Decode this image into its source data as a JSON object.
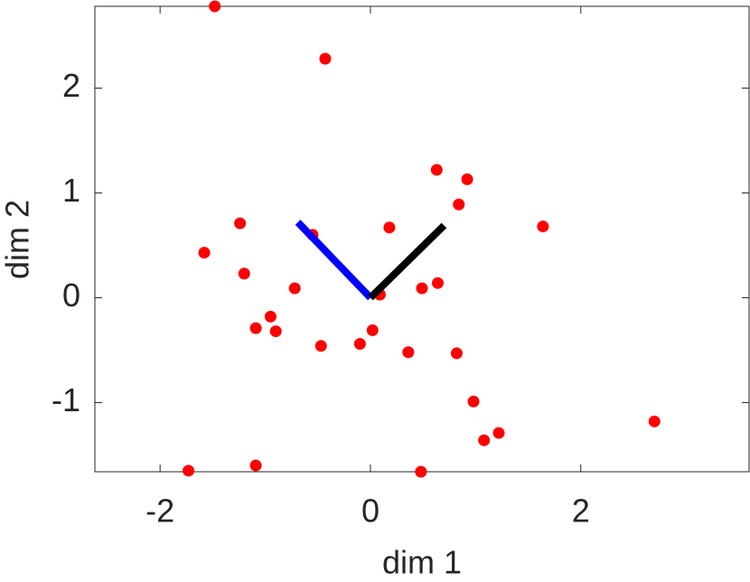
{
  "chart_data": {
    "type": "scatter",
    "xlabel": "dim 1",
    "ylabel": "dim 2",
    "x": [
      -1.48,
      -0.43,
      0.63,
      0.92,
      0.84,
      0.18,
      1.64,
      -1.24,
      -0.55,
      -1.58,
      -1.2,
      -0.72,
      0.09,
      0.49,
      0.64,
      -0.95,
      -1.09,
      -0.9,
      -0.47,
      -0.1,
      0.02,
      0.36,
      0.82,
      0.98,
      1.22,
      1.08,
      2.7,
      -1.73,
      -1.09,
      0.48
    ],
    "y": [
      2.78,
      2.28,
      1.22,
      1.13,
      0.89,
      0.67,
      0.68,
      0.71,
      0.6,
      0.43,
      0.23,
      0.09,
      0.03,
      0.09,
      0.14,
      -0.18,
      -0.29,
      -0.32,
      -0.46,
      -0.44,
      -0.31,
      -0.52,
      -0.53,
      -0.99,
      -1.29,
      -1.36,
      -1.18,
      -1.65,
      -1.6,
      -1.66
    ],
    "color": "#ff0000",
    "lines": [
      {
        "color": "#0000ff",
        "x": [
          0,
          -0.69
        ],
        "y": [
          0,
          0.72
        ]
      },
      {
        "color": "#000000",
        "x": [
          0,
          0.7
        ],
        "y": [
          0,
          0.69
        ]
      }
    ],
    "xlim": [
      -2.62,
      3.6
    ],
    "ylim": [
      -1.66,
      2.78
    ],
    "xticks": [
      -2,
      0,
      2
    ],
    "yticks": [
      -1,
      0,
      1,
      2
    ],
    "grid": false
  }
}
